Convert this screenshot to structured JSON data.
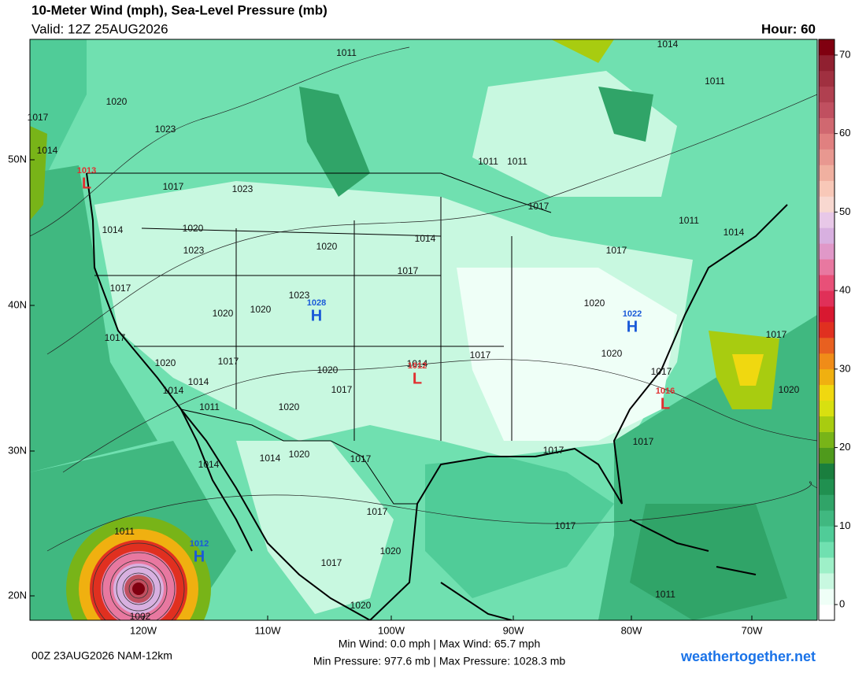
{
  "header": {
    "title": "10-Meter Wind (mph), Sea-Level Pressure (mb)",
    "valid": "Valid: 12Z 25AUG2026",
    "hour": "Hour: 60"
  },
  "map": {
    "lat_labels": [
      "50N",
      "40N",
      "30N",
      "20N"
    ],
    "lon_labels": [
      "120W",
      "110W",
      "100W",
      "90W",
      "80W",
      "70W"
    ],
    "isobar_labels": [
      1020,
      1017,
      1023,
      1014,
      1017,
      1023,
      1014,
      1020,
      1023,
      1020,
      1014,
      1017,
      1017,
      1023,
      1020,
      1020,
      1017,
      1020,
      1017,
      1014,
      1014,
      1011,
      1020,
      1017,
      1020,
      1014,
      1017,
      1020,
      1020,
      1017,
      1017,
      1020,
      1017,
      1017,
      1014,
      1020,
      1017,
      1014,
      1017,
      1017,
      1011,
      1020,
      1017,
      1020,
      1002,
      1011,
      1014,
      1011,
      1011,
      1011,
      1017,
      1011,
      1014,
      1017,
      1011
    ],
    "systems": [
      {
        "symbol": "L",
        "pressure": 1013
      },
      {
        "symbol": "H",
        "pressure": 1028
      },
      {
        "symbol": "L",
        "pressure": 1012
      },
      {
        "symbol": "H",
        "pressure": 1022
      },
      {
        "symbol": "L",
        "pressure": 1016
      },
      {
        "symbol": "H",
        "pressure": 1012
      }
    ]
  },
  "colorbar": {
    "lim": [
      -2,
      72
    ],
    "ticks": [
      0,
      10,
      20,
      30,
      40,
      50,
      60,
      70
    ],
    "colors": [
      "#ffffff",
      "#effff7",
      "#c8f8e0",
      "#9ef0c8",
      "#70e0b0",
      "#50cc98",
      "#40b880",
      "#30a468",
      "#209050",
      "#1a7e3e",
      "#4f9a1c",
      "#78b418",
      "#a8cc10",
      "#d8e010",
      "#f0d810",
      "#f0b010",
      "#f08c18",
      "#e86020",
      "#e03020",
      "#d81830",
      "#e03058",
      "#e85078",
      "#e878a0",
      "#e098c8",
      "#d8b0e0",
      "#e8c8e8",
      "#f8d8d0",
      "#f8c8b8",
      "#f0b0a0",
      "#e89890",
      "#e08080",
      "#d06870",
      "#c05060",
      "#b04050",
      "#a03040",
      "#902030",
      "#800010"
    ]
  },
  "footer": {
    "run": "00Z 23AUG2026 NAM-12km",
    "wind": "Min Wind:  0.0 mph | Max Wind: 65.7 mph",
    "pressure": "Min Pressure: 977.6 mb | Max Pressure: 1028.3 mb",
    "brand": "weathertogether.net"
  }
}
